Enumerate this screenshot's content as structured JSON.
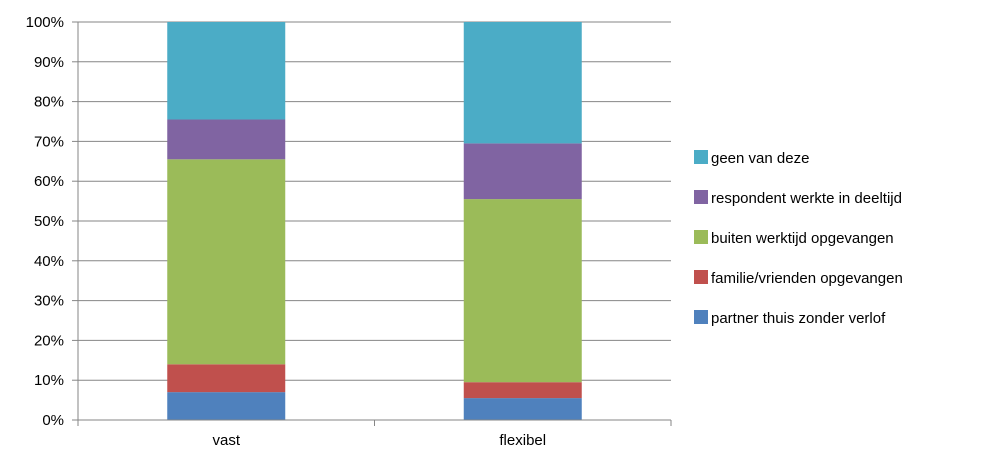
{
  "chart_data": {
    "type": "bar",
    "stacked": true,
    "percent": true,
    "categories": [
      "vast",
      "flexibel"
    ],
    "series": [
      {
        "name": "partner thuis zonder verlof",
        "values": [
          7,
          5.5
        ],
        "color": "#4F81BD"
      },
      {
        "name": "familie/vrienden opgevangen",
        "values": [
          7,
          4
        ],
        "color": "#C0504D"
      },
      {
        "name": "buiten werktijd opgevangen",
        "values": [
          51.5,
          46
        ],
        "color": "#9BBB59"
      },
      {
        "name": "respondent werkte in deeltijd",
        "values": [
          10,
          14
        ],
        "color": "#8064A2"
      },
      {
        "name": "geen van deze",
        "values": [
          24.5,
          30.5
        ],
        "color": "#4BACC6"
      }
    ],
    "ylim": [
      0,
      100
    ],
    "yticks": [
      "0%",
      "10%",
      "20%",
      "30%",
      "40%",
      "50%",
      "60%",
      "70%",
      "80%",
      "90%",
      "100%"
    ],
    "grid": true,
    "legend": "right",
    "xlabel": "",
    "ylabel": "",
    "title": ""
  }
}
